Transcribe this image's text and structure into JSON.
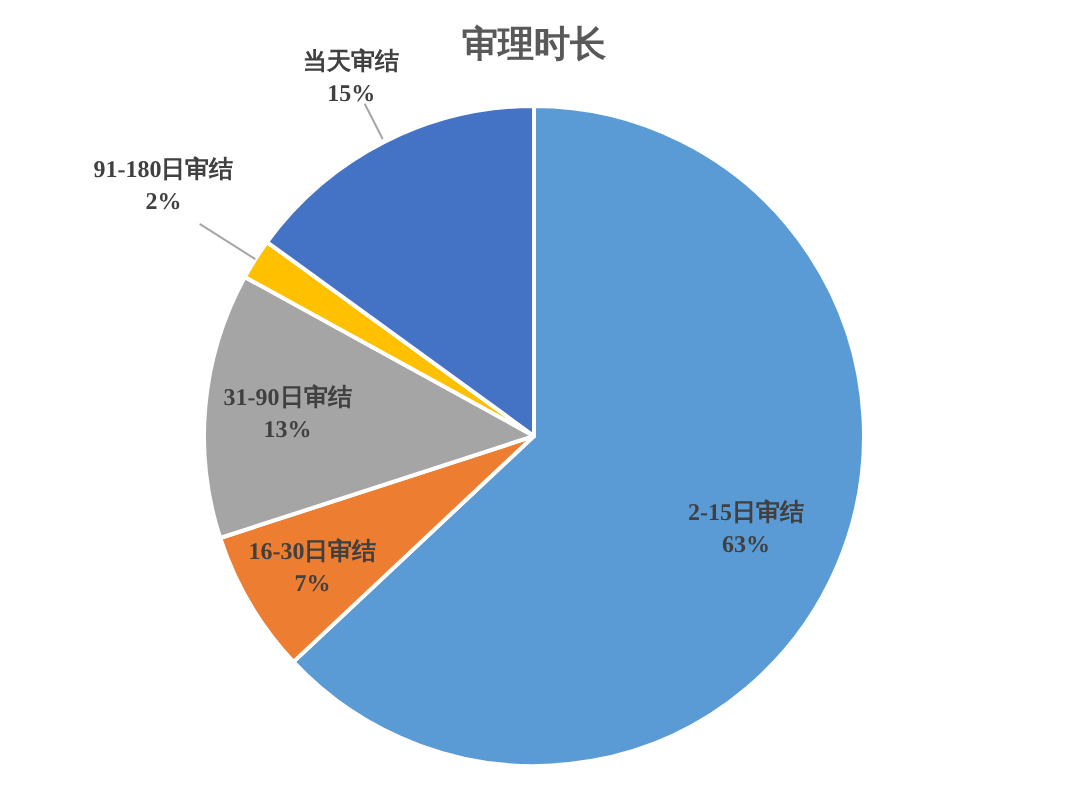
{
  "chart_data": {
    "type": "pie",
    "title": "审理时长",
    "categories": [
      "2-15日审结",
      "16-30日审结",
      "31-90日审结",
      "91-180日审结",
      "当天审结"
    ],
    "values": [
      63,
      7,
      13,
      2,
      15
    ],
    "colors": [
      "#5b9bd5",
      "#ed7d31",
      "#a5a5a5",
      "#ffc000",
      "#4472c4"
    ],
    "value_labels": [
      "63%",
      "7%",
      "13%",
      "2%",
      "15%"
    ]
  }
}
